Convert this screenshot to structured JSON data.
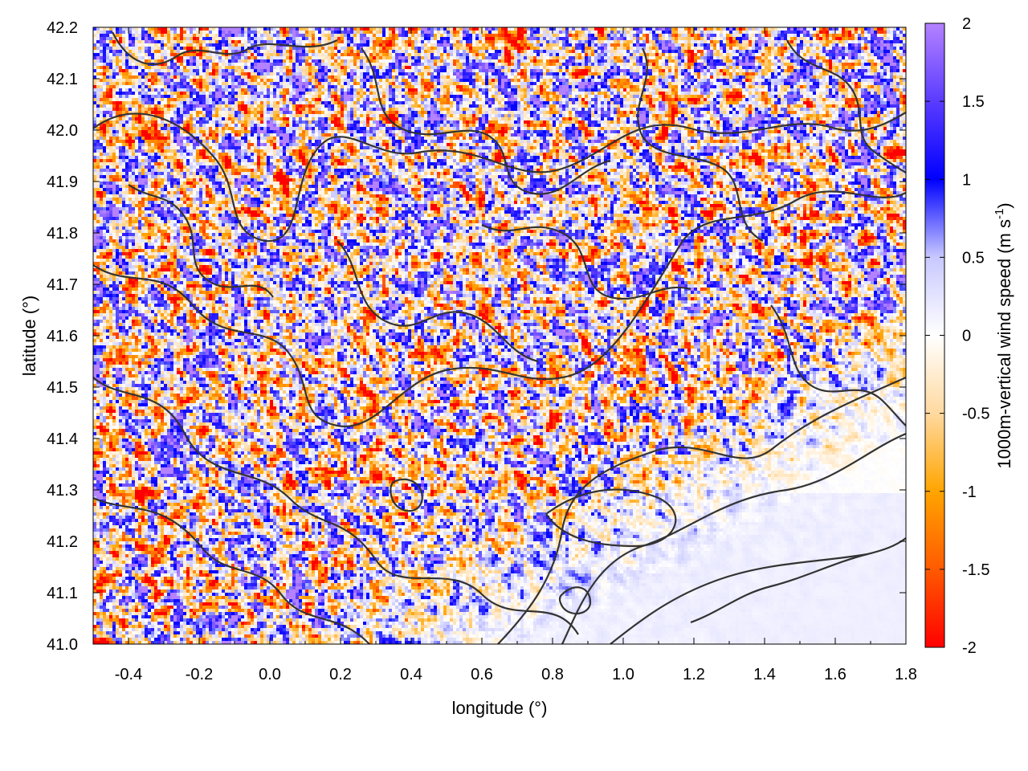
{
  "chart_data": {
    "type": "heatmap",
    "title": "",
    "xlabel": "longitude (°)",
    "ylabel": "latitude (°)",
    "colorbar_label": "1000m-vertical wind speed (m s",
    "colorbar_label_sup": "-1",
    "colorbar_label_close": ")",
    "xlim": [
      -0.5,
      1.8
    ],
    "ylim": [
      41.0,
      42.2
    ],
    "xticks": [
      -0.4,
      -0.2,
      0.0,
      0.2,
      0.4,
      0.6,
      0.8,
      1.0,
      1.2,
      1.4,
      1.6,
      1.8
    ],
    "xtick_labels": [
      "-0.4",
      "-0.2",
      "0.0",
      "0.2",
      "0.4",
      "0.6",
      "0.8",
      "1.0",
      "1.2",
      "1.4",
      "1.6",
      "1.8"
    ],
    "yticks": [
      41.0,
      41.1,
      41.2,
      41.3,
      41.4,
      41.5,
      41.6,
      41.7,
      41.8,
      41.9,
      42.0,
      42.1,
      42.2
    ],
    "ytick_labels": [
      "41.0",
      "41.1",
      "41.2",
      "41.3",
      "41.4",
      "41.5",
      "41.6",
      "41.7",
      "41.8",
      "41.9",
      "42.0",
      "42.1",
      "42.2"
    ],
    "colorbar_range": [
      -2,
      2
    ],
    "colorbar_ticks": [
      -2,
      -1.5,
      -1,
      -0.5,
      0,
      0.5,
      1,
      1.5,
      2
    ],
    "colorbar_tick_labels": [
      "-2",
      "-1.5",
      "-1",
      "-0.5",
      "0",
      "0.5",
      "1",
      "1.5",
      "2"
    ],
    "colormap": {
      "stops": [
        -2,
        -1.5,
        -1,
        -0.5,
        0,
        0.5,
        1,
        1.5,
        2
      ],
      "colors": [
        "#ff0000",
        "#ff5a00",
        "#ffa500",
        "#ffd9a0",
        "#ffffff",
        "#c8c8ff",
        "#0000ff",
        "#5a3cff",
        "#b482ff"
      ]
    },
    "contour_color": "#333333",
    "grid": false
  }
}
